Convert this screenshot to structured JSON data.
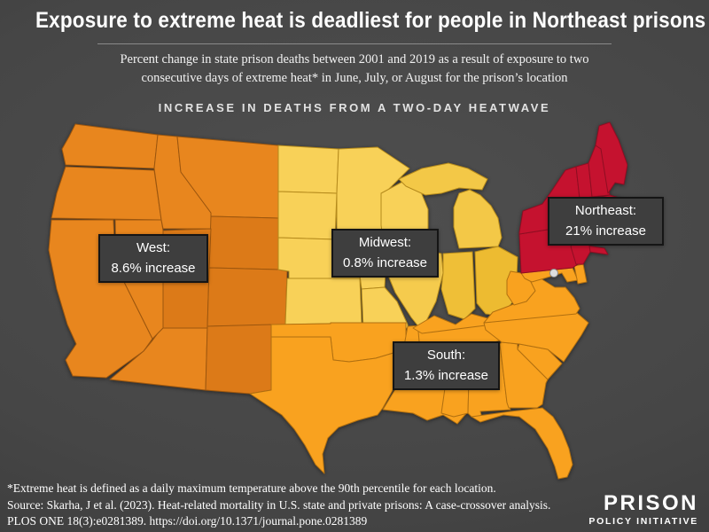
{
  "header": {
    "title": "Exposure to extreme heat is deadliest for people in Northeast prisons",
    "subtitle_line1": "Percent change in state prison deaths between 2001 and 2019 as a result of exposure to two",
    "subtitle_line2": "consecutive days of extreme heat* in June, July, or August for the prison’s location"
  },
  "map": {
    "section_label": "INCREASE IN DEATHS FROM A TWO-DAY HEATWAVE",
    "dc_marker_color": "#DEDEDE",
    "dc_marker_ring": "#8A8A8A"
  },
  "regions": {
    "west": {
      "name": "West",
      "label_line1": "West:",
      "label_line2": "8.6% increase",
      "value_pct": 8.6,
      "color": "#E8861E",
      "color_alt": "#DC7A18",
      "stroke": "#9C560E"
    },
    "midwest": {
      "name": "Midwest",
      "label_line1": "Midwest:",
      "label_line2": "0.8% increase",
      "value_pct": 0.8,
      "color": "#F8D158",
      "color_mi": "#F3C847",
      "color_il": "#F5CB4D",
      "color_in": "#EFBF37",
      "color_oh": "#EDBB31",
      "stroke": "#B58A1C"
    },
    "south": {
      "name": "South",
      "label_line1": "South:",
      "label_line2": "1.3% increase",
      "value_pct": 1.3,
      "color": "#F9A21F",
      "stroke": "#B06F10"
    },
    "northeast": {
      "name": "Northeast",
      "label_line1": "Northeast:",
      "label_line2": "21% increase",
      "value_pct": 21,
      "color": "#C5122F",
      "stroke": "#8E0E22"
    }
  },
  "chart_data": {
    "type": "choropleth",
    "title": "INCREASE IN DEATHS FROM A TWO-DAY HEATWAVE",
    "categories": [
      "West",
      "Midwest",
      "South",
      "Northeast"
    ],
    "values": [
      8.6,
      0.8,
      1.3,
      21
    ],
    "unit": "% increase in deaths"
  },
  "footer": {
    "footnote": "*Extreme heat is defined as a daily maximum temperature above the 90th percentile for each location.",
    "source_line1": "Source: Skarha, J et al. (2023). Heat-related mortality in U.S. state and private prisons: A case-crossover analysis.",
    "source_line2": "PLOS ONE 18(3):e0281389. https://doi.org/10.1371/journal.pone.0281389"
  },
  "logo": {
    "line1": "PRISON",
    "line2": "POLICY INITIATIVE"
  }
}
